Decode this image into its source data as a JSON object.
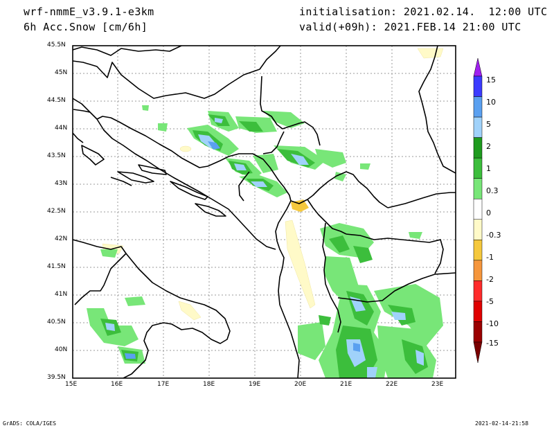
{
  "header": {
    "model": "wrf-nmmE_v3.9.1-e3km",
    "field": "6h Acc.Snow [cm/6h]",
    "init": "initialisation: 2021.02.14.  12:00 UTC",
    "valid": "valid(+09h): 2021.FEB.14 21:00 UTC"
  },
  "axes": {
    "lon_labels": [
      "15E",
      "16E",
      "17E",
      "18E",
      "19E",
      "20E",
      "21E",
      "22E",
      "23E"
    ],
    "lat_labels": [
      "39.5N",
      "40N",
      "40.5N",
      "41N",
      "41.5N",
      "42N",
      "42.5N",
      "43N",
      "43.5N",
      "44N",
      "44.5N",
      "45N",
      "45.5N"
    ]
  },
  "colorbar": {
    "labels": [
      "15",
      "10",
      "5",
      "2",
      "1",
      "0.3",
      "0",
      "-0.3",
      "-1",
      "-2",
      "-5",
      "-10",
      "-15"
    ],
    "colors": [
      "#3b3bff",
      "#5aa0f0",
      "#a0d2fa",
      "#1e9b1e",
      "#3cbe3c",
      "#78e678",
      "#ffffff",
      "#fffac8",
      "#f5c83c",
      "#f5963c",
      "#ff2b2b",
      "#e00000",
      "#9b0000"
    ],
    "top_arrow_color": "#a020f0",
    "bottom_arrow_color": "#7a0000"
  },
  "footer": {
    "left": "GrADS: COLA/IGES",
    "right": "2021-02-14-21:58"
  }
}
